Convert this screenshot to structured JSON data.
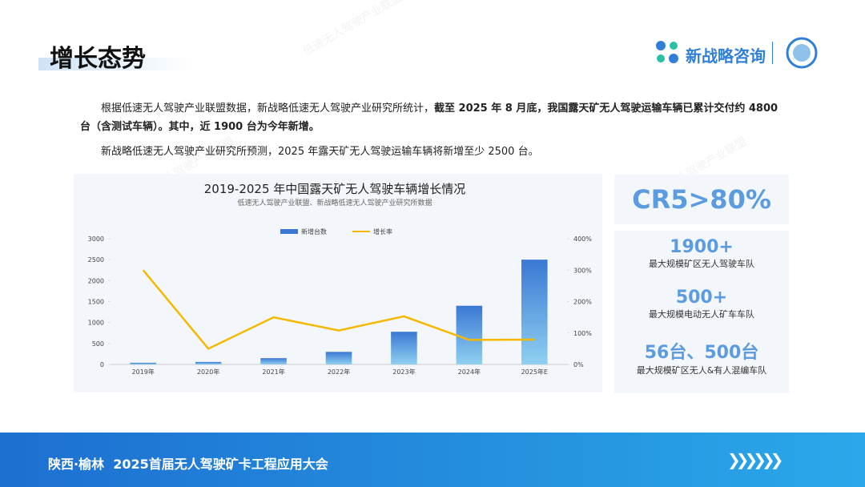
{
  "header": {
    "title": "增长态势",
    "logo_text": "新战略咨询"
  },
  "watermark": "低速无人驾驶产业联盟",
  "paragraphs": [
    {
      "normal": "根据低速无人驾驶产业联盟数据，新战略低速无人驾驶产业研究所统计，",
      "bold": "截至 2025 年 8 月底，我国露天矿无人驾驶运输车辆已累计交付约 4800 台（含测试车辆）。其中，近 1900 台为今年新增。"
    },
    {
      "normal": "新战略低速无人驾驶产业研究所预测，2025 年露天矿无人驾驶运输车辆将新增至少 2500 台。"
    }
  ],
  "chart_data": {
    "type": "bar",
    "title": "2019-2025 年中国露天矿无人驾驶车辆增长情况",
    "subtitle": "低速无人驾驶产业联盟、新战略低速无人驾驶产业研究所数据",
    "categories": [
      "2019年",
      "2020年",
      "2021年",
      "2022年",
      "2023年",
      "2024年",
      "2025年E"
    ],
    "series": [
      {
        "name": "新增台数",
        "type": "bar",
        "color": "#3a78d4",
        "values": [
          40,
          60,
          150,
          300,
          780,
          1400,
          2500
        ]
      },
      {
        "name": "增长率",
        "type": "line",
        "axis": "y2",
        "color": "#f5b800",
        "values": [
          300,
          50,
          150,
          108,
          153,
          78,
          79
        ]
      }
    ],
    "ylim": [
      0,
      3000
    ],
    "yticks": [
      0,
      500,
      1000,
      1500,
      2000,
      2500,
      3000
    ],
    "y2lim": [
      0,
      400
    ],
    "y2ticks": [
      {
        "value": 0,
        "label": "0%"
      },
      {
        "value": 100,
        "label": "100%"
      },
      {
        "value": 200,
        "label": "200%"
      },
      {
        "value": 300,
        "label": "300%"
      },
      {
        "value": 400,
        "label": "400%"
      }
    ],
    "legend": "top"
  },
  "stats": [
    {
      "value": "CR5>80%"
    },
    {
      "value": "1900+",
      "label": "最大规模矿区无人驾驶车队"
    },
    {
      "value": "500+",
      "label": "最大规模电动无人矿车车队"
    },
    {
      "value": "56台、500台",
      "label": "最大规模矿区无人&有人混编车队"
    }
  ],
  "footer": {
    "text": "陕西·榆林  2025首届无人驾驶矿卡工程应用大会"
  }
}
